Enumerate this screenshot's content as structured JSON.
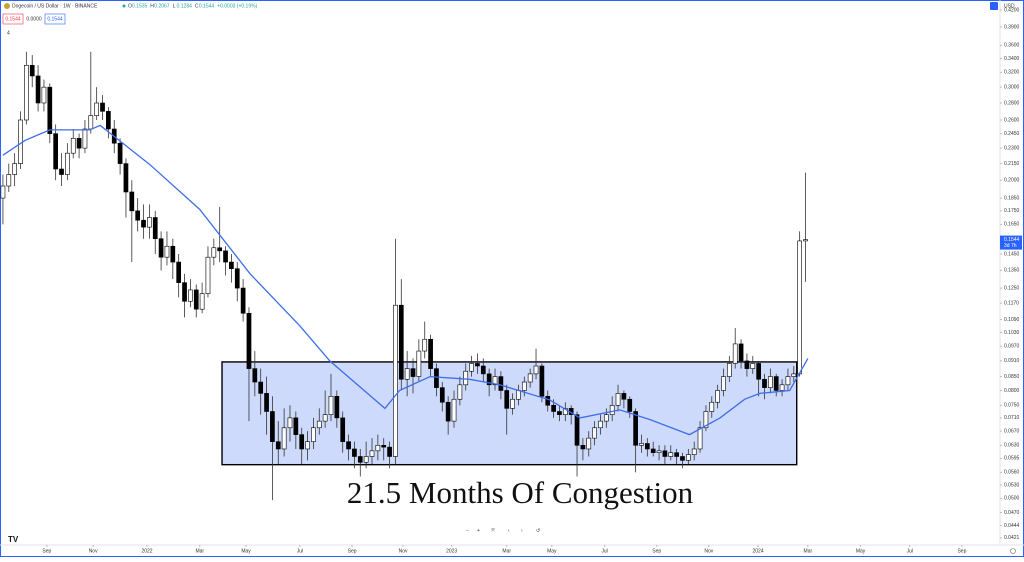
{
  "header": {
    "symbol": "Dogecoin / US Dollar · 1W · BINANCE",
    "ohlc_letters": [
      "O",
      "H",
      "L",
      "C"
    ],
    "ohlc": [
      0.1535,
      0.2067,
      0.1284,
      0.1544
    ],
    "change": "+0.0003 (+0.19%)",
    "boxes": [
      "0.1544",
      "0.0000",
      "0.1544"
    ],
    "collapse": "4",
    "currency": "USD"
  },
  "chart_data": {
    "type": "candlestick",
    "log_scale": true,
    "grid": false,
    "up_color": "#ffffff",
    "down_color": "#000000",
    "wick_color": "#333333",
    "xlim": [
      -0.5,
      170.2
    ],
    "ylim": [
      0.0408,
      0.4386
    ],
    "xticks": [
      {
        "value": 7.5,
        "label": "Sep"
      },
      {
        "value": 15.4,
        "label": "Nov"
      },
      {
        "value": 24.6,
        "label": "2022"
      },
      {
        "value": 33.6,
        "label": "Mar"
      },
      {
        "value": 41.5,
        "label": "May"
      },
      {
        "value": 50.7,
        "label": "Jul"
      },
      {
        "value": 59.6,
        "label": "Sep"
      },
      {
        "value": 68.3,
        "label": "Nov"
      },
      {
        "value": 76.6,
        "label": "2023"
      },
      {
        "value": 86.0,
        "label": "Mar"
      },
      {
        "value": 93.7,
        "label": "May"
      },
      {
        "value": 102.7,
        "label": "Jul"
      },
      {
        "value": 111.6,
        "label": "Sep"
      },
      {
        "value": 120.5,
        "label": "Nov"
      },
      {
        "value": 128.9,
        "label": "2024"
      },
      {
        "value": 137.4,
        "label": "Mar"
      },
      {
        "value": 146.4,
        "label": "May"
      },
      {
        "value": 154.8,
        "label": "Jul"
      },
      {
        "value": 163.7,
        "label": "Sep"
      }
    ],
    "yticks": [
      {
        "value": 0.42,
        "label": "0.4200"
      },
      {
        "value": 0.39,
        "label": "0.3900"
      },
      {
        "value": 0.36,
        "label": "0.3600"
      },
      {
        "value": 0.34,
        "label": "0.3400"
      },
      {
        "value": 0.32,
        "label": "0.3200"
      },
      {
        "value": 0.3,
        "label": "0.3000"
      },
      {
        "value": 0.28,
        "label": "0.2800"
      },
      {
        "value": 0.26,
        "label": "0.2600"
      },
      {
        "value": 0.245,
        "label": "0.2450"
      },
      {
        "value": 0.23,
        "label": "0.2300"
      },
      {
        "value": 0.215,
        "label": "0.2150"
      },
      {
        "value": 0.2,
        "label": "0.2000"
      },
      {
        "value": 0.185,
        "label": "0.1850"
      },
      {
        "value": 0.175,
        "label": "0.1750"
      },
      {
        "value": 0.165,
        "label": "0.1650"
      },
      {
        "value": 0.145,
        "label": "0.1450"
      },
      {
        "value": 0.135,
        "label": "0.1350"
      },
      {
        "value": 0.125,
        "label": "0.1250"
      },
      {
        "value": 0.117,
        "label": "0.1170"
      },
      {
        "value": 0.109,
        "label": "0.1090"
      },
      {
        "value": 0.103,
        "label": "0.1030"
      },
      {
        "value": 0.097,
        "label": "0.0970"
      },
      {
        "value": 0.091,
        "label": "0.0910"
      },
      {
        "value": 0.085,
        "label": "0.0850"
      },
      {
        "value": 0.08,
        "label": "0.0800"
      },
      {
        "value": 0.075,
        "label": "0.0750"
      },
      {
        "value": 0.071,
        "label": "0.0710"
      },
      {
        "value": 0.067,
        "label": "0.0670"
      },
      {
        "value": 0.063,
        "label": "0.0630"
      },
      {
        "value": 0.0595,
        "label": "0.0595"
      },
      {
        "value": 0.056,
        "label": "0.0560"
      },
      {
        "value": 0.053,
        "label": "0.0530"
      },
      {
        "value": 0.05,
        "label": "0.0500"
      },
      {
        "value": 0.047,
        "label": "0.0470"
      },
      {
        "value": 0.0444,
        "label": "0.0444"
      },
      {
        "value": 0.0421,
        "label": "0.0421"
      }
    ],
    "last_price": 0.1544,
    "countdown": "3d 7h",
    "price_color": "#2962ff",
    "candles": [
      [
        0.185,
        0.205,
        0.165,
        0.195
      ],
      [
        0.195,
        0.215,
        0.19,
        0.205
      ],
      [
        0.205,
        0.225,
        0.195,
        0.215
      ],
      [
        0.215,
        0.27,
        0.21,
        0.26
      ],
      [
        0.26,
        0.35,
        0.255,
        0.33
      ],
      [
        0.33,
        0.345,
        0.3,
        0.315
      ],
      [
        0.315,
        0.33,
        0.27,
        0.28
      ],
      [
        0.28,
        0.31,
        0.27,
        0.3
      ],
      [
        0.3,
        0.305,
        0.235,
        0.245
      ],
      [
        0.245,
        0.255,
        0.2,
        0.21
      ],
      [
        0.21,
        0.225,
        0.195,
        0.205
      ],
      [
        0.205,
        0.235,
        0.2,
        0.225
      ],
      [
        0.225,
        0.25,
        0.22,
        0.24
      ],
      [
        0.24,
        0.245,
        0.22,
        0.23
      ],
      [
        0.23,
        0.26,
        0.225,
        0.25
      ],
      [
        0.25,
        0.35,
        0.245,
        0.265
      ],
      [
        0.265,
        0.3,
        0.26,
        0.28
      ],
      [
        0.28,
        0.29,
        0.26,
        0.27
      ],
      [
        0.27,
        0.275,
        0.24,
        0.25
      ],
      [
        0.25,
        0.26,
        0.225,
        0.235
      ],
      [
        0.235,
        0.24,
        0.205,
        0.215
      ],
      [
        0.215,
        0.22,
        0.17,
        0.19
      ],
      [
        0.19,
        0.2,
        0.14,
        0.175
      ],
      [
        0.175,
        0.185,
        0.16,
        0.168
      ],
      [
        0.168,
        0.18,
        0.155,
        0.163
      ],
      [
        0.163,
        0.18,
        0.155,
        0.17
      ],
      [
        0.17,
        0.175,
        0.145,
        0.155
      ],
      [
        0.155,
        0.16,
        0.135,
        0.143
      ],
      [
        0.143,
        0.16,
        0.138,
        0.15
      ],
      [
        0.15,
        0.155,
        0.13,
        0.14
      ],
      [
        0.14,
        0.145,
        0.12,
        0.128
      ],
      [
        0.128,
        0.133,
        0.11,
        0.118
      ],
      [
        0.118,
        0.13,
        0.115,
        0.124
      ],
      [
        0.124,
        0.127,
        0.11,
        0.114
      ],
      [
        0.114,
        0.128,
        0.112,
        0.122
      ],
      [
        0.122,
        0.15,
        0.12,
        0.143
      ],
      [
        0.143,
        0.155,
        0.138,
        0.149
      ],
      [
        0.149,
        0.178,
        0.14,
        0.147
      ],
      [
        0.147,
        0.15,
        0.132,
        0.14
      ],
      [
        0.14,
        0.145,
        0.128,
        0.136
      ],
      [
        0.136,
        0.14,
        0.118,
        0.125
      ],
      [
        0.125,
        0.13,
        0.108,
        0.112
      ],
      [
        0.112,
        0.115,
        0.07,
        0.088
      ],
      [
        0.088,
        0.095,
        0.078,
        0.083
      ],
      [
        0.083,
        0.088,
        0.072,
        0.079
      ],
      [
        0.079,
        0.085,
        0.066,
        0.073
      ],
      [
        0.073,
        0.078,
        0.0496,
        0.064
      ],
      [
        0.064,
        0.07,
        0.058,
        0.062
      ],
      [
        0.062,
        0.074,
        0.06,
        0.068
      ],
      [
        0.068,
        0.075,
        0.064,
        0.071
      ],
      [
        0.071,
        0.073,
        0.062,
        0.066
      ],
      [
        0.066,
        0.068,
        0.058,
        0.062
      ],
      [
        0.062,
        0.067,
        0.059,
        0.064
      ],
      [
        0.064,
        0.071,
        0.062,
        0.068
      ],
      [
        0.068,
        0.074,
        0.066,
        0.07
      ],
      [
        0.07,
        0.08,
        0.068,
        0.072
      ],
      [
        0.072,
        0.086,
        0.07,
        0.078
      ],
      [
        0.078,
        0.08,
        0.068,
        0.071
      ],
      [
        0.071,
        0.073,
        0.061,
        0.064
      ],
      [
        0.064,
        0.066,
        0.059,
        0.062
      ],
      [
        0.062,
        0.064,
        0.057,
        0.06
      ],
      [
        0.06,
        0.062,
        0.055,
        0.0585
      ],
      [
        0.0585,
        0.064,
        0.057,
        0.06
      ],
      [
        0.06,
        0.065,
        0.058,
        0.0615
      ],
      [
        0.0615,
        0.066,
        0.059,
        0.063
      ],
      [
        0.063,
        0.065,
        0.059,
        0.0625
      ],
      [
        0.0625,
        0.064,
        0.057,
        0.06
      ],
      [
        0.06,
        0.155,
        0.058,
        0.116
      ],
      [
        0.116,
        0.13,
        0.08,
        0.084
      ],
      [
        0.084,
        0.095,
        0.078,
        0.088
      ],
      [
        0.088,
        0.092,
        0.079,
        0.085
      ],
      [
        0.085,
        0.1,
        0.083,
        0.095
      ],
      [
        0.095,
        0.108,
        0.092,
        0.1
      ],
      [
        0.1,
        0.102,
        0.085,
        0.088
      ],
      [
        0.088,
        0.09,
        0.078,
        0.081
      ],
      [
        0.081,
        0.083,
        0.073,
        0.076
      ],
      [
        0.076,
        0.078,
        0.066,
        0.07
      ],
      [
        0.07,
        0.08,
        0.068,
        0.077
      ],
      [
        0.077,
        0.085,
        0.075,
        0.082
      ],
      [
        0.082,
        0.09,
        0.08,
        0.087
      ],
      [
        0.087,
        0.093,
        0.085,
        0.09
      ],
      [
        0.09,
        0.094,
        0.086,
        0.089
      ],
      [
        0.089,
        0.092,
        0.083,
        0.086
      ],
      [
        0.086,
        0.088,
        0.078,
        0.082
      ],
      [
        0.082,
        0.088,
        0.08,
        0.085
      ],
      [
        0.085,
        0.087,
        0.077,
        0.08
      ],
      [
        0.08,
        0.082,
        0.066,
        0.074
      ],
      [
        0.074,
        0.079,
        0.072,
        0.077
      ],
      [
        0.077,
        0.082,
        0.075,
        0.08
      ],
      [
        0.08,
        0.085,
        0.078,
        0.083
      ],
      [
        0.083,
        0.088,
        0.081,
        0.086
      ],
      [
        0.086,
        0.096,
        0.084,
        0.089
      ],
      [
        0.089,
        0.09,
        0.076,
        0.078
      ],
      [
        0.078,
        0.08,
        0.073,
        0.075
      ],
      [
        0.075,
        0.077,
        0.071,
        0.073
      ],
      [
        0.073,
        0.075,
        0.07,
        0.072
      ],
      [
        0.072,
        0.076,
        0.07,
        0.074
      ],
      [
        0.074,
        0.075,
        0.069,
        0.072
      ],
      [
        0.072,
        0.073,
        0.055,
        0.063
      ],
      [
        0.063,
        0.065,
        0.059,
        0.062
      ],
      [
        0.062,
        0.067,
        0.06,
        0.065
      ],
      [
        0.065,
        0.07,
        0.063,
        0.068
      ],
      [
        0.068,
        0.072,
        0.066,
        0.07
      ],
      [
        0.07,
        0.074,
        0.068,
        0.072
      ],
      [
        0.072,
        0.078,
        0.07,
        0.075
      ],
      [
        0.075,
        0.082,
        0.073,
        0.079
      ],
      [
        0.079,
        0.08,
        0.074,
        0.077
      ],
      [
        0.077,
        0.078,
        0.071,
        0.073
      ],
      [
        0.073,
        0.074,
        0.056,
        0.063
      ],
      [
        0.063,
        0.066,
        0.061,
        0.0635
      ],
      [
        0.0635,
        0.065,
        0.06,
        0.062
      ],
      [
        0.062,
        0.064,
        0.06,
        0.061
      ],
      [
        0.061,
        0.063,
        0.059,
        0.0615
      ],
      [
        0.0615,
        0.063,
        0.058,
        0.06
      ],
      [
        0.06,
        0.063,
        0.059,
        0.061
      ],
      [
        0.061,
        0.062,
        0.058,
        0.06
      ],
      [
        0.06,
        0.061,
        0.057,
        0.059
      ],
      [
        0.059,
        0.062,
        0.058,
        0.0605
      ],
      [
        0.0605,
        0.064,
        0.059,
        0.062
      ],
      [
        0.062,
        0.07,
        0.061,
        0.068
      ],
      [
        0.068,
        0.075,
        0.067,
        0.073
      ],
      [
        0.073,
        0.078,
        0.071,
        0.076
      ],
      [
        0.076,
        0.082,
        0.074,
        0.08
      ],
      [
        0.08,
        0.088,
        0.078,
        0.085
      ],
      [
        0.085,
        0.093,
        0.083,
        0.09
      ],
      [
        0.09,
        0.105,
        0.088,
        0.098
      ],
      [
        0.098,
        0.1,
        0.088,
        0.091
      ],
      [
        0.091,
        0.094,
        0.085,
        0.088
      ],
      [
        0.088,
        0.093,
        0.086,
        0.09
      ],
      [
        0.09,
        0.091,
        0.078,
        0.084
      ],
      [
        0.084,
        0.086,
        0.077,
        0.081
      ],
      [
        0.081,
        0.088,
        0.079,
        0.085
      ],
      [
        0.085,
        0.086,
        0.078,
        0.08
      ],
      [
        0.08,
        0.084,
        0.078,
        0.082
      ],
      [
        0.082,
        0.088,
        0.08,
        0.085
      ],
      [
        0.085,
        0.089,
        0.083,
        0.086
      ],
      [
        0.086,
        0.16,
        0.085,
        0.1535
      ],
      [
        0.1535,
        0.2067,
        0.1284,
        0.1544
      ]
    ],
    "ma": {
      "color": "#3d6ee8",
      "x": [
        0,
        3.8,
        8,
        14.8,
        16.6,
        25.1,
        33.6,
        42.2,
        50.7,
        55.8,
        65.2,
        67.7,
        72.9,
        79.7,
        84.8,
        93.3,
        98.5,
        105.3,
        110.4,
        117.2,
        122.4,
        126.6,
        129.2,
        134.3,
        137.4
      ],
      "values": [
        0.223,
        0.238,
        0.249,
        0.249,
        0.254,
        0.214,
        0.176,
        0.133,
        0.106,
        0.091,
        0.074,
        0.08,
        0.085,
        0.084,
        0.082,
        0.0768,
        0.071,
        0.0735,
        0.0705,
        0.066,
        0.071,
        0.077,
        0.079,
        0.08,
        0.092
      ]
    },
    "box": {
      "xlim": [
        37.4,
        135.5
      ],
      "ylim": [
        0.0579,
        0.0906
      ],
      "color": "#c6d3fa"
    },
    "annotation": "21.5 Months Of Congestion"
  }
}
